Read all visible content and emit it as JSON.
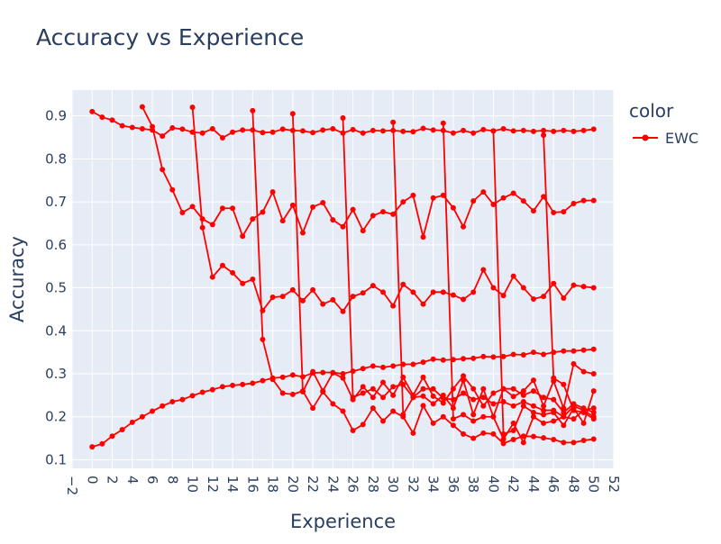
{
  "chart_data": {
    "type": "line",
    "title": "Accuracy vs Experience",
    "xlabel": "Experience",
    "ylabel": "Accuracy",
    "xlim": [
      -2,
      52
    ],
    "ylim": [
      0.08,
      0.96
    ],
    "x_ticks": [
      -2,
      0,
      2,
      4,
      6,
      8,
      10,
      12,
      14,
      16,
      18,
      20,
      22,
      24,
      26,
      28,
      30,
      32,
      34,
      36,
      38,
      40,
      42,
      44,
      46,
      48,
      50,
      52
    ],
    "x_tick_labels": [
      "−2",
      "0",
      "2",
      "4",
      "6",
      "8",
      "10",
      "12",
      "14",
      "16",
      "18",
      "20",
      "22",
      "24",
      "26",
      "28",
      "30",
      "32",
      "34",
      "36",
      "38",
      "40",
      "42",
      "44",
      "46",
      "48",
      "50",
      "52"
    ],
    "y_ticks": [
      0.1,
      0.2,
      0.3,
      0.4,
      0.5,
      0.6,
      0.7,
      0.8,
      0.9
    ],
    "y_tick_labels": [
      "0.1",
      "0.2",
      "0.3",
      "0.4",
      "0.5",
      "0.6",
      "0.7",
      "0.8",
      "0.9"
    ],
    "grid": true,
    "legend": {
      "title": "color",
      "position": "right",
      "entries": [
        {
          "name": "EWC",
          "color": "#ff0000"
        }
      ]
    },
    "series": [
      {
        "name": "EWC",
        "color": "#ff0000",
        "x": [
          0,
          1,
          2,
          3,
          4,
          5,
          6,
          7,
          8,
          9,
          10,
          11,
          12,
          13,
          14,
          15,
          16,
          17,
          18,
          19,
          20,
          21,
          22,
          23,
          24,
          25,
          26,
          27,
          28,
          29,
          30,
          31,
          32,
          33,
          34,
          35,
          36,
          37,
          38,
          39,
          40,
          41,
          42,
          43,
          44,
          45,
          46,
          47,
          48,
          49,
          50
        ],
        "y": [
          0.91,
          0.897,
          0.89,
          0.877,
          0.873,
          0.87,
          0.867,
          0.853,
          0.872,
          0.869,
          0.862,
          0.86,
          0.87,
          0.849,
          0.862,
          0.867,
          0.867,
          0.861,
          0.862,
          0.869,
          0.866,
          0.865,
          0.861,
          0.867,
          0.87,
          0.86,
          0.868,
          0.86,
          0.866,
          0.865,
          0.866,
          0.864,
          0.863,
          0.871,
          0.867,
          0.866,
          0.86,
          0.866,
          0.86,
          0.868,
          0.865,
          0.87,
          0.865,
          0.866,
          0.864,
          0.866,
          0.864,
          0.866,
          0.864,
          0.866,
          0.869
        ]
      },
      {
        "name": "EWC",
        "color": "#ff0000",
        "x": [
          5,
          6,
          7,
          8,
          9,
          10,
          11,
          12,
          13,
          14,
          15,
          16,
          17,
          18,
          19,
          20,
          21,
          22,
          23,
          24,
          25,
          26,
          27,
          28,
          29,
          30,
          31,
          32,
          33,
          34,
          35,
          36,
          37,
          38,
          39,
          40,
          41,
          42,
          43,
          44,
          45,
          46,
          47,
          48,
          49,
          50
        ],
        "y": [
          0.921,
          0.875,
          0.775,
          0.728,
          0.675,
          0.689,
          0.66,
          0.647,
          0.685,
          0.685,
          0.62,
          0.66,
          0.676,
          0.723,
          0.656,
          0.692,
          0.628,
          0.688,
          0.698,
          0.658,
          0.642,
          0.682,
          0.633,
          0.668,
          0.677,
          0.671,
          0.7,
          0.715,
          0.618,
          0.709,
          0.715,
          0.686,
          0.642,
          0.702,
          0.723,
          0.694,
          0.709,
          0.72,
          0.702,
          0.679,
          0.712,
          0.675,
          0.677,
          0.696,
          0.703,
          0.703
        ]
      },
      {
        "name": "EWC",
        "color": "#ff0000",
        "x": [
          10,
          11,
          12,
          13,
          14,
          15,
          16,
          17,
          18,
          19,
          20,
          21,
          22,
          23,
          24,
          25,
          26,
          27,
          28,
          29,
          30,
          31,
          32,
          33,
          34,
          35,
          36,
          37,
          38,
          39,
          40,
          41,
          42,
          43,
          44,
          45,
          46,
          47,
          48,
          49,
          50
        ],
        "y": [
          0.92,
          0.64,
          0.525,
          0.552,
          0.535,
          0.51,
          0.52,
          0.447,
          0.478,
          0.48,
          0.495,
          0.47,
          0.495,
          0.462,
          0.472,
          0.445,
          0.48,
          0.488,
          0.505,
          0.49,
          0.458,
          0.508,
          0.49,
          0.462,
          0.49,
          0.49,
          0.483,
          0.473,
          0.49,
          0.542,
          0.5,
          0.482,
          0.527,
          0.5,
          0.474,
          0.48,
          0.51,
          0.476,
          0.506,
          0.503,
          0.5
        ]
      },
      {
        "name": "EWC",
        "color": "#ff0000",
        "x": [
          0,
          1,
          2,
          3,
          4,
          5,
          6,
          7,
          8,
          9,
          10,
          11,
          12,
          13,
          14,
          15,
          16,
          17,
          18,
          19,
          20,
          21,
          22,
          23,
          24,
          25,
          26,
          27,
          28,
          29,
          30,
          31,
          32,
          33,
          34,
          35,
          36,
          37,
          38,
          39,
          40,
          41,
          42,
          43,
          44,
          45,
          46,
          47,
          48,
          49,
          50
        ],
        "y": [
          0.13,
          0.137,
          0.155,
          0.17,
          0.187,
          0.2,
          0.213,
          0.225,
          0.235,
          0.24,
          0.249,
          0.257,
          0.263,
          0.27,
          0.273,
          0.275,
          0.278,
          0.284,
          0.29,
          0.292,
          0.297,
          0.293,
          0.302,
          0.303,
          0.303,
          0.3,
          0.306,
          0.312,
          0.318,
          0.315,
          0.318,
          0.322,
          0.322,
          0.327,
          0.334,
          0.332,
          0.333,
          0.335,
          0.336,
          0.34,
          0.339,
          0.34,
          0.345,
          0.344,
          0.35,
          0.345,
          0.35,
          0.353,
          0.353,
          0.355,
          0.357
        ]
      },
      {
        "name": "EWC",
        "color": "#ff0000",
        "x": [
          16,
          17,
          18,
          19,
          20,
          21,
          22,
          23,
          24,
          25,
          26,
          27,
          28,
          29,
          30,
          31,
          32,
          33,
          34,
          35,
          36,
          37,
          38,
          39,
          40,
          41,
          42,
          43,
          44,
          45,
          46,
          47,
          48,
          49,
          50
        ],
        "y": [
          0.912,
          0.38,
          0.287,
          0.255,
          0.252,
          0.26,
          0.22,
          0.258,
          0.23,
          0.213,
          0.168,
          0.182,
          0.22,
          0.19,
          0.213,
          0.2,
          0.162,
          0.226,
          0.185,
          0.2,
          0.18,
          0.16,
          0.15,
          0.162,
          0.16,
          0.138,
          0.147,
          0.155,
          0.154,
          0.151,
          0.147,
          0.14,
          0.14,
          0.145,
          0.148
        ]
      },
      {
        "name": "EWC",
        "color": "#ff0000",
        "x": [
          20,
          21,
          22,
          23,
          24,
          25,
          26,
          27,
          28,
          29,
          30,
          31,
          32,
          33,
          34,
          35,
          36,
          37,
          38,
          39,
          40,
          41,
          42,
          43,
          44,
          45,
          46,
          47,
          48,
          49,
          50
        ],
        "y": [
          0.905,
          0.258,
          0.305,
          0.26,
          0.302,
          0.29,
          0.24,
          0.27,
          0.245,
          0.28,
          0.25,
          0.292,
          0.25,
          0.292,
          0.248,
          0.232,
          0.265,
          0.295,
          0.265,
          0.225,
          0.255,
          0.265,
          0.247,
          0.26,
          0.285,
          0.225,
          0.283,
          0.22,
          0.323,
          0.305,
          0.3
        ]
      },
      {
        "name": "EWC",
        "color": "#ff0000",
        "x": [
          25,
          26,
          27,
          28,
          29,
          30,
          31,
          32,
          33,
          34,
          35,
          36,
          37,
          38,
          39,
          40,
          41,
          42,
          43,
          44,
          45,
          46,
          47,
          48,
          49,
          50
        ],
        "y": [
          0.895,
          0.245,
          0.255,
          0.265,
          0.245,
          0.27,
          0.275,
          0.245,
          0.265,
          0.265,
          0.243,
          0.24,
          0.255,
          0.24,
          0.245,
          0.23,
          0.235,
          0.225,
          0.235,
          0.225,
          0.215,
          0.215,
          0.2,
          0.195,
          0.215,
          0.22
        ]
      },
      {
        "name": "EWC",
        "color": "#ff0000",
        "x": [
          30,
          31,
          32,
          33,
          34,
          35,
          36,
          37,
          38,
          39,
          40,
          41,
          42,
          43,
          44,
          45,
          46,
          47,
          48,
          49,
          50
        ],
        "y": [
          0.885,
          0.205,
          0.245,
          0.248,
          0.23,
          0.25,
          0.22,
          0.285,
          0.205,
          0.265,
          0.2,
          0.265,
          0.265,
          0.25,
          0.26,
          0.245,
          0.24,
          0.21,
          0.23,
          0.22,
          0.21
        ]
      },
      {
        "name": "EWC",
        "color": "#ff0000",
        "x": [
          35,
          36,
          37,
          38,
          39,
          40,
          41,
          42,
          43,
          44,
          45,
          46,
          47,
          48,
          49,
          50
        ],
        "y": [
          0.883,
          0.195,
          0.205,
          0.19,
          0.2,
          0.2,
          0.148,
          0.185,
          0.14,
          0.2,
          0.185,
          0.19,
          0.2,
          0.225,
          0.215,
          0.2
        ]
      },
      {
        "name": "EWC",
        "color": "#ff0000",
        "x": [
          40,
          41,
          42,
          43,
          44,
          45,
          46,
          47,
          48,
          49,
          50
        ],
        "y": [
          0.865,
          0.16,
          0.168,
          0.225,
          0.21,
          0.205,
          0.21,
          0.18,
          0.22,
          0.185,
          0.26
        ]
      },
      {
        "name": "EWC",
        "color": "#ff0000",
        "x": [
          45,
          46,
          47,
          48,
          49,
          50
        ],
        "y": [
          0.855,
          0.29,
          0.275,
          0.215,
          0.21,
          0.195
        ]
      }
    ]
  }
}
